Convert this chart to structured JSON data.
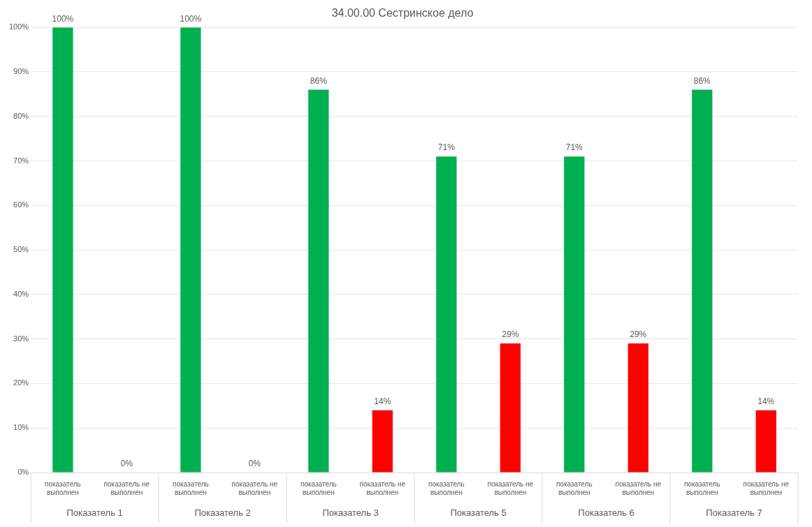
{
  "chart_data": {
    "type": "bar",
    "title": "34.00.00 Сестринское дело",
    "categories": [
      "показатель выполнен",
      "показатель не выполнен",
      "показатель выполнен",
      "показатель не выполнен",
      "показатель выполнен",
      "показатель не выполнен",
      "показатель выполнен",
      "показатель не выполнен",
      "показатель выполнен",
      "показатель не выполнен",
      "показатель выполнен",
      "показатель не выполнен"
    ],
    "values": [
      100,
      0,
      100,
      0,
      86,
      14,
      71,
      29,
      71,
      29,
      86,
      14
    ],
    "colors": [
      "#00b050",
      "#ff0000",
      "#00b050",
      "#ff0000",
      "#00b050",
      "#ff0000",
      "#00b050",
      "#ff0000",
      "#00b050",
      "#ff0000",
      "#00b050",
      "#ff0000"
    ],
    "value_labels": [
      "100%",
      "0%",
      "100%",
      "0%",
      "86%",
      "14%",
      "71%",
      "29%",
      "71%",
      "29%",
      "86%",
      "14%"
    ],
    "ylim": [
      0,
      100
    ],
    "yticks": [
      {
        "value": 0,
        "label": "0%"
      },
      {
        "value": 10,
        "label": "10%"
      },
      {
        "value": 20,
        "label": "20%"
      },
      {
        "value": 30,
        "label": "30%"
      },
      {
        "value": 40,
        "label": "40%"
      },
      {
        "value": 50,
        "label": "50%"
      },
      {
        "value": 60,
        "label": "60%"
      },
      {
        "value": 70,
        "label": "70%"
      },
      {
        "value": 80,
        "label": "80%"
      },
      {
        "value": 90,
        "label": "90%"
      },
      {
        "value": 100,
        "label": "100%"
      }
    ],
    "annotations": [
      "Показатель 1",
      "Показатель 2",
      "Показатель 3",
      "Показатель 5",
      "Показатель 6",
      "Показатель 7"
    ],
    "grid": "y",
    "legend": false
  }
}
